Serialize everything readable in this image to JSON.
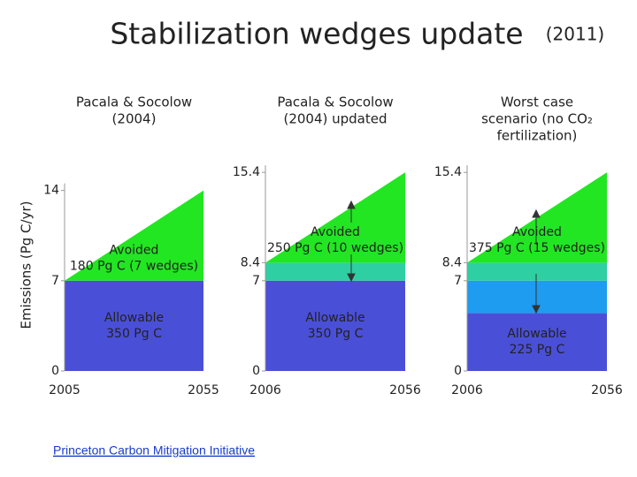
{
  "title": "Stabilization wedges update",
  "year": "(2011)",
  "y_axis_label": "Emissions (Pg C/yr)",
  "link": "Princeton Carbon Mitigation Initiative",
  "chart_data": [
    {
      "type": "area",
      "title": [
        "Pacala & Socolow",
        "(2004)"
      ],
      "x": [
        2005,
        2055
      ],
      "xlim": [
        2005,
        2055
      ],
      "xticks": [
        2005,
        2055
      ],
      "ylim": [
        0,
        14
      ],
      "yticks": [
        0,
        7,
        14
      ],
      "series": [
        {
          "name": "Allowable",
          "note": "350 Pg C",
          "color": "#4a4fd8",
          "values": [
            7,
            7
          ]
        },
        {
          "name": "Avoided",
          "note": "180 Pg C (7 wedges)",
          "color": "#22e622",
          "values": [
            0,
            7
          ]
        }
      ]
    },
    {
      "type": "area",
      "title": [
        "Pacala & Socolow",
        "(2004) updated"
      ],
      "x": [
        2006,
        2056
      ],
      "xlim": [
        2006,
        2056
      ],
      "xticks": [
        2006,
        2056
      ],
      "ylim": [
        0,
        15.4
      ],
      "yticks": [
        0,
        7,
        8.4,
        15.4
      ],
      "series": [
        {
          "name": "Allowable",
          "note": "350 Pg C",
          "color": "#4a4fd8",
          "values": [
            7,
            7
          ]
        },
        {
          "color": "#2ecfa2",
          "values": [
            1.4,
            1.4
          ]
        },
        {
          "name": "Avoided",
          "note": "250 Pg C (10 wedges)",
          "color": "#22e622",
          "values": [
            0,
            7
          ]
        }
      ]
    },
    {
      "type": "area",
      "title": [
        "Worst case",
        "scenario (no CO₂",
        "fertilization)"
      ],
      "x": [
        2006,
        2056
      ],
      "xlim": [
        2006,
        2056
      ],
      "xticks": [
        2006,
        2056
      ],
      "ylim": [
        0,
        15.4
      ],
      "yticks": [
        0,
        7,
        8.4,
        15.4
      ],
      "series": [
        {
          "name": "Allowable",
          "note": "225 Pg C",
          "color": "#4a4fd8",
          "values": [
            4.5,
            4.5
          ]
        },
        {
          "color": "#1e9cf0",
          "values": [
            2.5,
            2.5
          ]
        },
        {
          "color": "#2ecfa2",
          "values": [
            1.4,
            1.4
          ]
        },
        {
          "name": "Avoided",
          "note": "375 Pg C (15 wedges)",
          "color": "#22e622",
          "values": [
            0,
            7
          ]
        }
      ]
    }
  ]
}
